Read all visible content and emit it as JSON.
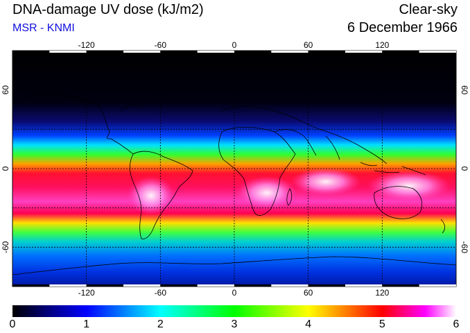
{
  "header": {
    "title": "DNA-damage UV dose (kJ/m2)",
    "subtitle": "MSR - KNMI",
    "condition": "Clear-sky",
    "date": "6 December 1966"
  },
  "map": {
    "projection": "equirectangular",
    "lon_range": [
      -180,
      180
    ],
    "lat_range": [
      -90,
      90
    ],
    "grid": true,
    "lon_ticks": [
      -120,
      -60,
      0,
      60,
      120
    ],
    "lat_ticks": [
      60,
      0,
      -60
    ],
    "lon_tick_labels": [
      "-120",
      "-60",
      "0",
      "60",
      "120"
    ],
    "lat_tick_labels": [
      "60",
      "0",
      "-60"
    ]
  },
  "colorbar": {
    "min": 0,
    "max": 6,
    "labels": [
      "0",
      "1",
      "2",
      "3",
      "4",
      "5",
      "6"
    ],
    "colors": [
      "#000000",
      "#0000ff",
      "#00ffff",
      "#00ff00",
      "#ffff00",
      "#ff0000",
      "#ff00ff",
      "#ffffff"
    ]
  }
}
